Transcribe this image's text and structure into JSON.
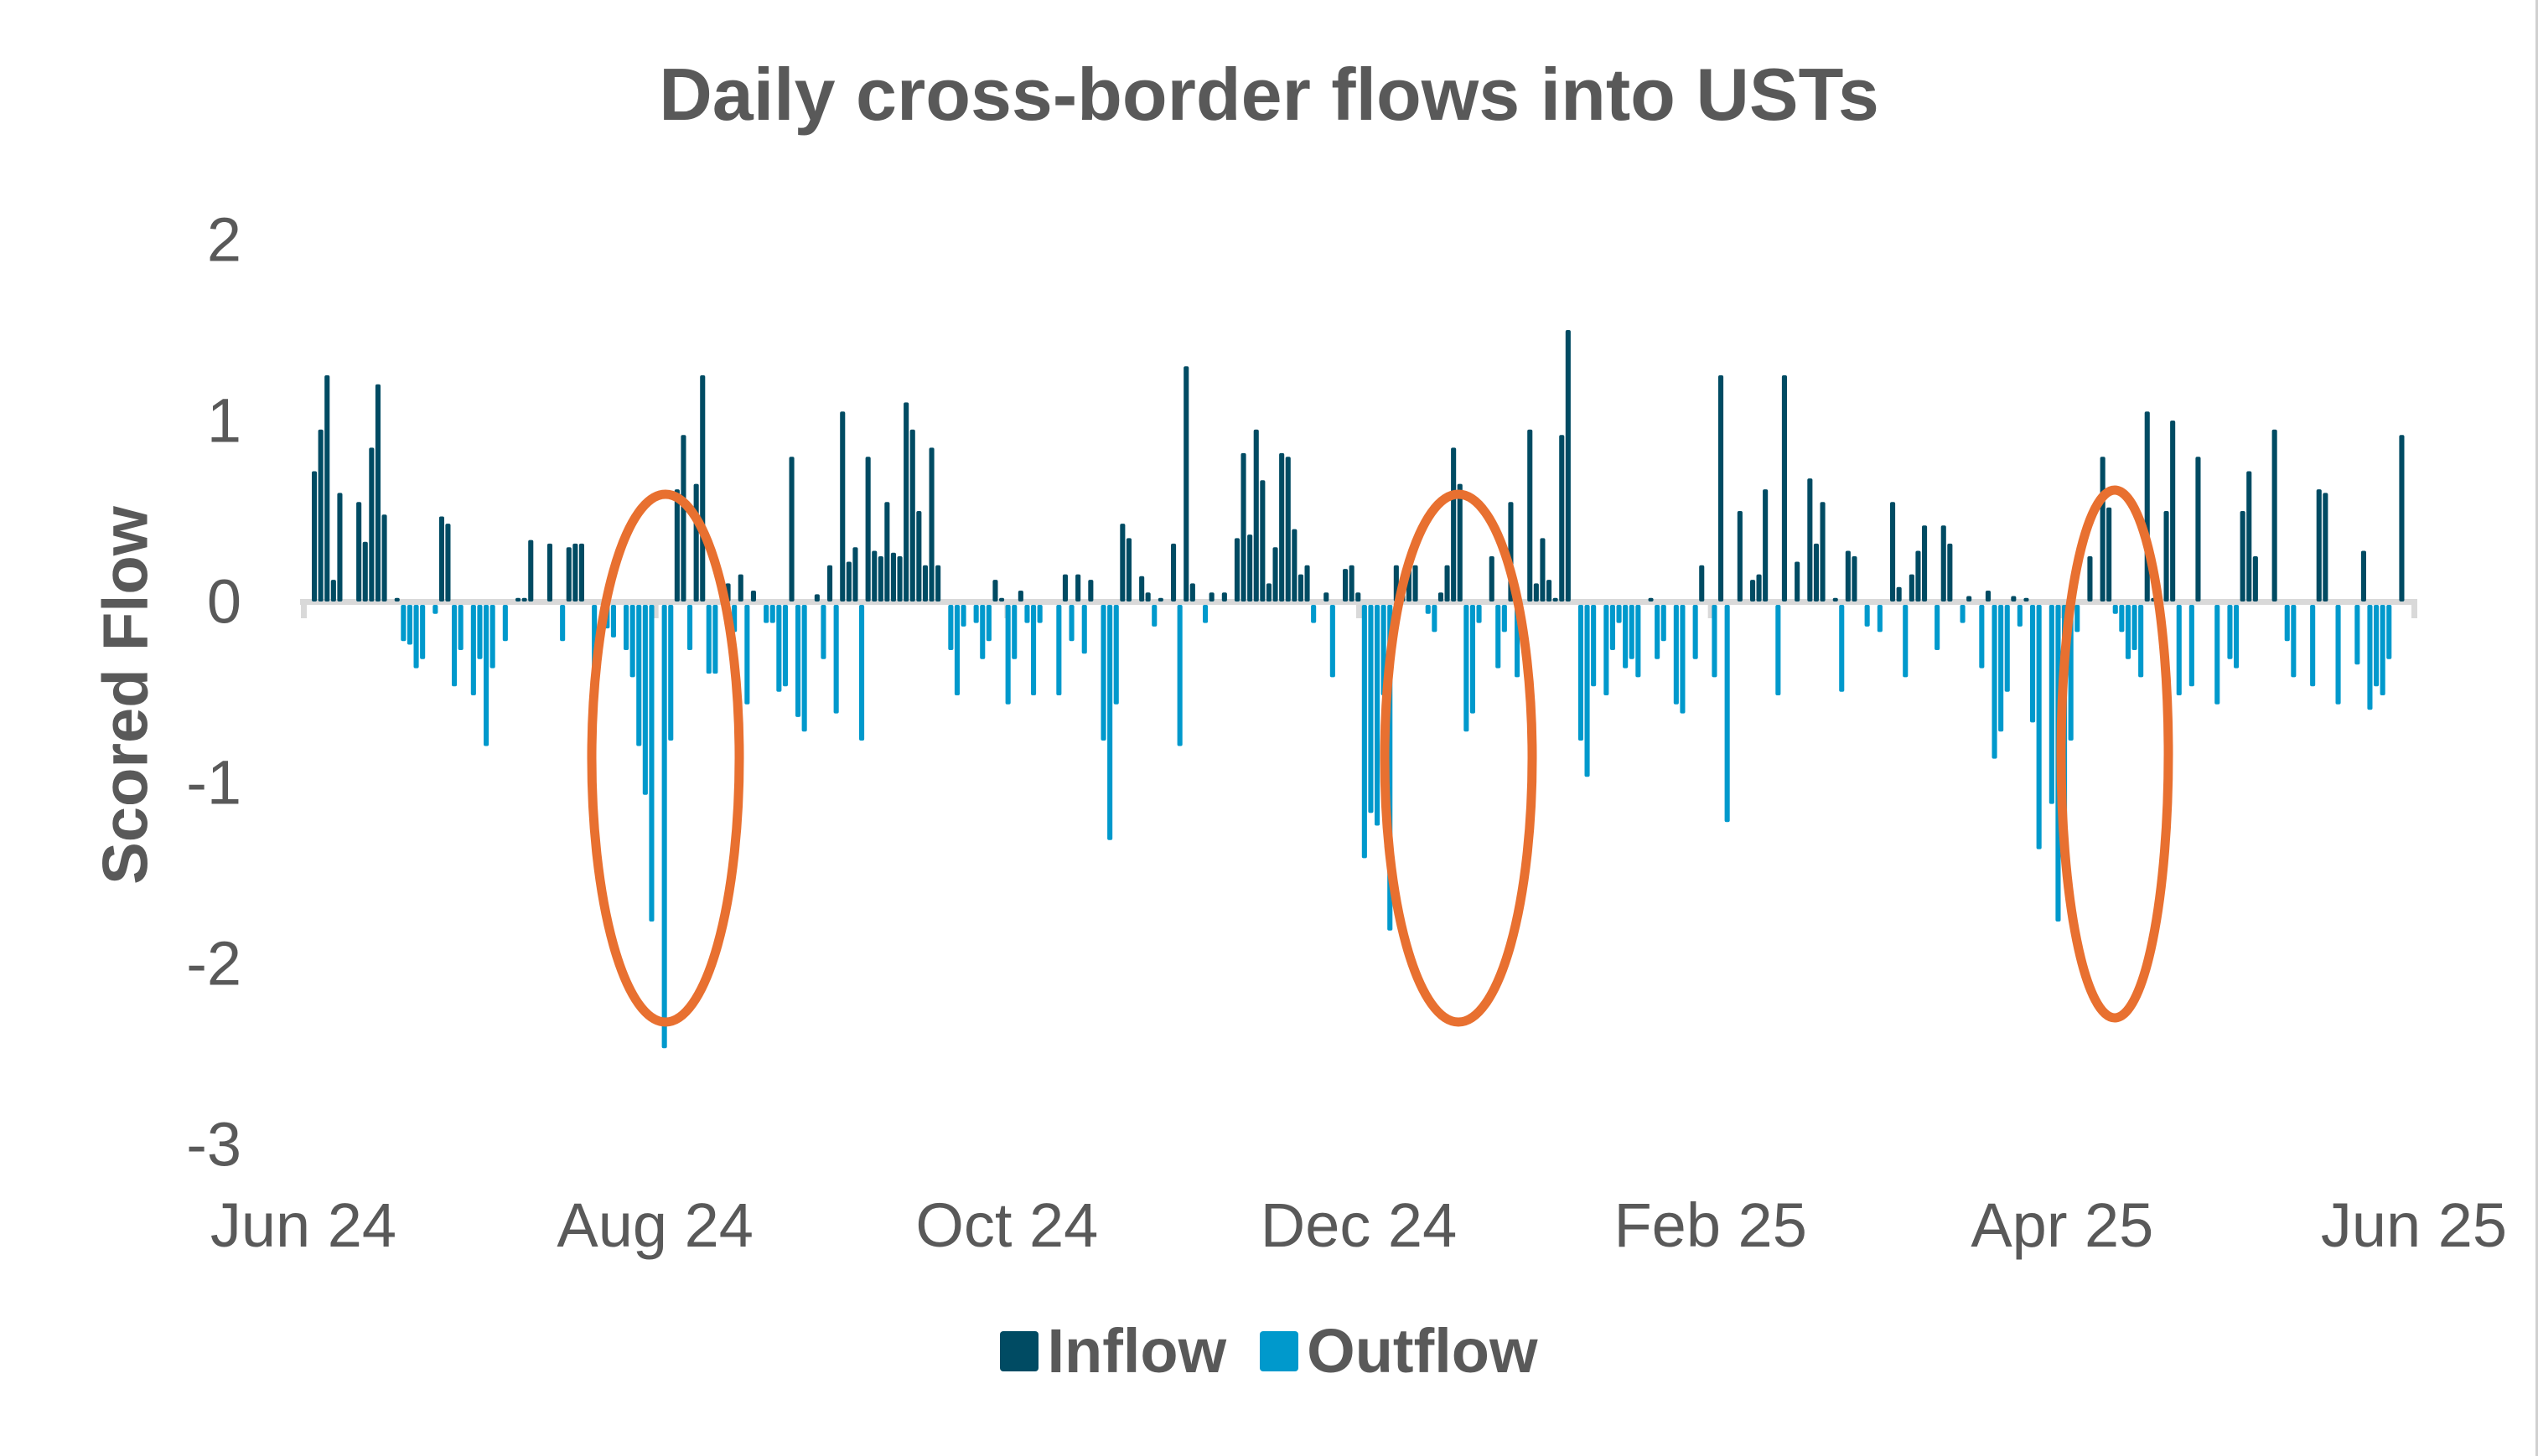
{
  "title": "Daily cross-border flows into USTs",
  "ylabel": "Scored Flow",
  "legend": [
    {
      "label": "Inflow",
      "color": "#004b63"
    },
    {
      "label": "Outflow",
      "color": "#0099cc"
    }
  ],
  "colors": {
    "inflow": "#004b63",
    "outflow": "#0099cc",
    "highlight": "#e87030",
    "axis": "#d9d9d9",
    "text": "#595959"
  },
  "chart_data": {
    "type": "bar",
    "title": "Daily cross-border flows into USTs",
    "xlabel": "",
    "ylabel": "Scored Flow",
    "ylim": [
      -3,
      2
    ],
    "yticks": [
      2,
      1,
      0,
      -1,
      -2,
      -3
    ],
    "xticks": [
      "Jun 24",
      "Aug 24",
      "Oct 24",
      "Dec 24",
      "Feb 25",
      "Apr 25",
      "Jun 25"
    ],
    "grid": false,
    "legend_position": "bottom",
    "series": [
      {
        "name": "Inflow",
        "color": "#004b63",
        "note": "positive values of daily series"
      },
      {
        "name": "Outflow",
        "color": "#0099cc",
        "note": "negative values of daily series"
      }
    ],
    "annotations": [
      {
        "type": "ellipse",
        "color": "#e87030",
        "around": "Aug 24",
        "note": "outflow spike, min approx -2.45"
      },
      {
        "type": "ellipse",
        "color": "#e87030",
        "around": "early Jan 25",
        "note": "outflow spike, min approx -1.8"
      },
      {
        "type": "ellipse",
        "color": "#e87030",
        "around": "mid Apr 25",
        "note": "outflow spike, min approx -1.75"
      }
    ],
    "x_start": "Jun 24",
    "x_end": "Jun 25",
    "values": [
      0.72,
      0.95,
      1.25,
      0.12,
      0.6,
      0.0,
      0.0,
      0.55,
      0.33,
      0.85,
      1.2,
      0.48,
      0.0,
      0.02,
      -0.2,
      -0.22,
      -0.35,
      -0.3,
      0.0,
      -0.05,
      0.47,
      0.43,
      -0.45,
      -0.25,
      0.0,
      -0.5,
      -0.3,
      -0.78,
      -0.35,
      0.0,
      -0.2,
      0.0,
      0.02,
      0.02,
      0.34,
      0.0,
      0.0,
      0.32,
      0.0,
      -0.2,
      0.3,
      0.32,
      0.32,
      0.0,
      -0.52,
      0.0,
      -0.13,
      -0.18,
      0.0,
      -0.25,
      -0.4,
      -0.78,
      -1.05,
      -1.75,
      0.0,
      -2.45,
      -0.75,
      0.62,
      0.92,
      -0.25,
      0.65,
      1.25,
      -0.38,
      -0.38,
      0.0,
      0.1,
      -0.15,
      0.15,
      -0.55,
      0.06,
      0.0,
      -0.1,
      -0.1,
      -0.48,
      -0.45,
      0.8,
      -0.62,
      -0.7,
      0.0,
      0.04,
      -0.3,
      0.2,
      -0.6,
      1.05,
      0.22,
      0.3,
      -0.75,
      0.8,
      0.28,
      0.25,
      0.55,
      0.27,
      0.25,
      1.1,
      0.95,
      0.5,
      0.2,
      0.85,
      0.2,
      0.0,
      -0.25,
      -0.5,
      -0.12,
      0.0,
      -0.1,
      -0.3,
      -0.2,
      0.12,
      0.02,
      -0.55,
      -0.3,
      0.06,
      -0.1,
      -0.5,
      -0.1,
      0.0,
      0.0,
      -0.5,
      0.15,
      -0.2,
      0.15,
      -0.27,
      0.12,
      0.0,
      -0.75,
      -1.3,
      -0.55,
      0.43,
      0.35,
      0.0,
      0.14,
      0.05,
      -0.12,
      0.02,
      0.0,
      0.32,
      -0.78,
      1.3,
      0.1,
      0.0,
      -0.1,
      0.05,
      0.0,
      0.05,
      0.0,
      0.35,
      0.82,
      0.37,
      0.95,
      0.67,
      0.1,
      0.3,
      0.82,
      0.8,
      0.4,
      0.15,
      0.2,
      -0.1,
      0.0,
      0.05,
      -0.4,
      0.0,
      0.18,
      0.2,
      0.05,
      -1.4,
      -1.15,
      -1.22,
      -0.5,
      -1.8,
      0.2,
      0.05,
      0.2,
      0.2,
      0.0,
      -0.05,
      -0.15,
      0.05,
      0.2,
      0.85,
      0.65,
      -0.7,
      -0.6,
      -0.1,
      0.0,
      0.25,
      -0.35,
      -0.15,
      0.55,
      -0.4,
      0.0,
      0.95,
      0.1,
      0.35,
      0.12,
      0.02,
      0.92,
      1.5,
      0.0,
      -0.75,
      -0.95,
      -0.45,
      0.0,
      -0.5,
      -0.25,
      -0.1,
      -0.35,
      -0.3,
      -0.4,
      0.0,
      0.02,
      -0.3,
      -0.2,
      0.0,
      -0.55,
      -0.6,
      0.0,
      -0.3,
      0.2,
      0.0,
      -0.4,
      1.25,
      -1.2,
      0.0,
      0.5,
      0.0,
      0.12,
      0.15,
      0.62,
      0.0,
      -0.5,
      1.25,
      0.0,
      0.22,
      0.0,
      0.68,
      0.32,
      0.55,
      0.0,
      0.02,
      -0.48,
      0.28,
      0.25,
      0.0,
      -0.12,
      0.0,
      -0.15,
      0.0,
      0.55,
      0.08,
      -0.4,
      0.15,
      0.28,
      0.42,
      0.0,
      -0.25,
      0.42,
      0.32,
      0.0,
      -0.1,
      0.03,
      0.0,
      -0.35,
      0.06,
      -0.85,
      -0.7,
      -0.48,
      0.03,
      -0.12,
      0.02,
      -0.65,
      -1.35,
      0.0,
      -1.1,
      -1.75,
      -1.2,
      -0.75,
      -0.15,
      0.0,
      0.25,
      0.0,
      0.8,
      0.52,
      -0.05,
      -0.15,
      -0.3,
      -0.25,
      -0.4,
      1.05,
      0.02,
      0.0,
      0.5,
      1.0,
      -0.5,
      0.0,
      -0.45,
      0.8,
      0.0,
      0.0,
      -0.55,
      0.0,
      -0.3,
      -0.35,
      0.5,
      0.72,
      0.25,
      0.0,
      0.0,
      0.95,
      0.0,
      -0.2,
      -0.4,
      0.0,
      0.0,
      -0.45,
      0.62,
      0.6,
      0.0,
      -0.55,
      0.0,
      0.0,
      -0.33,
      0.28,
      -0.58,
      -0.45,
      -0.5,
      -0.3,
      0.0,
      0.92
    ]
  }
}
